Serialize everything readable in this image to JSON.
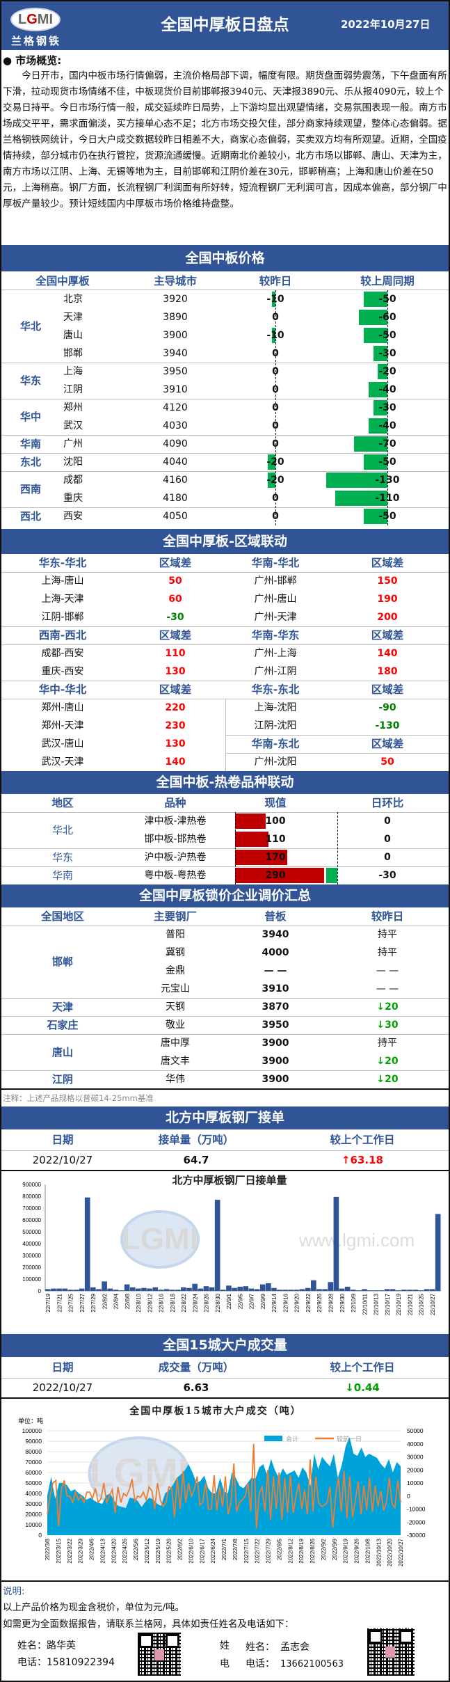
{
  "header": {
    "title": "全国中厚板日盘点",
    "date": "2022年10月27日",
    "logo_text": "LGMI",
    "logo_cn": "兰格钢铁"
  },
  "overview": {
    "label": "● 市场概览:",
    "text": "今日开市，国内中板市场行情偏弱，主流价格局部下调，幅度有限。期货盘面弱势震荡，下午盘面有所下滑，拉动现货市场情绪不佳，中板现货价目前邯郸报3940元、天津报3890元、乐从报4090元，较上个交易日持平。今日市场行情一般，成交延续昨日局势，上下游均显出观望情绪，交易氛围表现一般。南方市场成交平平，需求面偏淡，买方接单心态不足；北方市场交投欠佳，部分商家持续观望，整体心态偏弱。据兰格钢铁网统计，今日大户成交数据较昨日相差不大，商家心态偏弱，买卖双方均有所观望。近期，全国疫情持续，部分城市仍在执行管控，货源流通缓慢。近期南北价差较小，北方市场以邯郸、唐山、天津为主，南方市场以江阴、上海、无锡等地为主，目前邯郸和江阴价差在30元，邯郸稍高；上海和唐山价差在50元，上海稍高。钢厂方面，长流程钢厂利润面有所好转，短流程钢厂无利润可言，因成本偏高，部分钢厂中厚板产量较少。预计短线国内中厚板市场价格维持盘整。"
  },
  "price": {
    "title": "全国中板价格",
    "columns": [
      "全国中厚板",
      "主导城市",
      "较昨日",
      "较上周同期"
    ],
    "groups": [
      {
        "region": "华北",
        "rows": [
          {
            "city": "北京",
            "price": "3920",
            "dod": -10,
            "wow": -50
          },
          {
            "city": "天津",
            "price": "3890",
            "dod": 0,
            "wow": -60
          },
          {
            "city": "唐山",
            "price": "3900",
            "dod": -10,
            "wow": -50
          },
          {
            "city": "邯郸",
            "price": "3940",
            "dod": 0,
            "wow": -30
          }
        ]
      },
      {
        "region": "华东",
        "rows": [
          {
            "city": "上海",
            "price": "3950",
            "dod": 0,
            "wow": -20
          },
          {
            "city": "江阴",
            "price": "3910",
            "dod": 0,
            "wow": -40
          }
        ]
      },
      {
        "region": "华中",
        "rows": [
          {
            "city": "郑州",
            "price": "4120",
            "dod": 0,
            "wow": -30
          },
          {
            "city": "武汉",
            "price": "4030",
            "dod": 0,
            "wow": -40
          }
        ]
      },
      {
        "region": "华南",
        "rows": [
          {
            "city": "广州",
            "price": "4090",
            "dod": 0,
            "wow": -70
          }
        ]
      },
      {
        "region": "东北",
        "rows": [
          {
            "city": "沈阳",
            "price": "4040",
            "dod": -20,
            "wow": -50
          }
        ]
      },
      {
        "region": "西南",
        "rows": [
          {
            "city": "成都",
            "price": "4160",
            "dod": -20,
            "wow": -130
          },
          {
            "city": "重庆",
            "price": "4180",
            "dod": 0,
            "wow": -110
          }
        ]
      },
      {
        "region": "西北",
        "rows": [
          {
            "city": "西安",
            "price": "4050",
            "dod": 0,
            "wow": -50
          }
        ]
      }
    ],
    "bar_color": "#00b050"
  },
  "regional": {
    "title": "全国中厚板-区域联动",
    "left": [
      {
        "pair": "华东-华北",
        "diff_label": "区域差",
        "rows": [
          [
            "上海-唐山",
            50
          ],
          [
            "上海-天津",
            60
          ],
          [
            "江阴-邯郸",
            -30
          ]
        ]
      },
      {
        "pair": "西南-西北",
        "diff_label": "区域差",
        "rows": [
          [
            "成都-西安",
            110
          ],
          [
            "重庆-西安",
            130
          ]
        ]
      },
      {
        "pair": "华中-华北",
        "diff_label": "区域差",
        "rows": [
          [
            "郑州-唐山",
            220
          ],
          [
            "郑州-天津",
            230
          ],
          [
            "武汉-唐山",
            130
          ],
          [
            "武汉-天津",
            140
          ]
        ]
      }
    ],
    "right": [
      {
        "pair": "华南-华北",
        "diff_label": "区域差",
        "rows": [
          [
            "广州-邯郸",
            150
          ],
          [
            "广州-唐山",
            190
          ],
          [
            "广州-天津",
            200
          ]
        ]
      },
      {
        "pair": "华南-华东",
        "diff_label": "区域差",
        "rows": [
          [
            "广州-上海",
            140
          ],
          [
            "广州-江阴",
            180
          ]
        ]
      },
      {
        "pair": "华东-东北",
        "diff_label": "区域差",
        "rows": [
          [
            "上海-沈阳",
            -90
          ],
          [
            "江阴-沈阳",
            -130
          ]
        ]
      },
      {
        "pair": "华南-东北",
        "diff_label": "区域差",
        "rows": [
          [
            "广州-沈阳",
            50
          ]
        ]
      }
    ],
    "positive_color": "#ff0000",
    "negative_color": "#008000"
  },
  "hotroll": {
    "title": "全国中板-热卷品种联动",
    "columns": [
      "地区",
      "品种",
      "现值",
      "日环比"
    ],
    "groups": [
      {
        "region": "华北",
        "rows": [
          {
            "variety": "津中板-津热卷",
            "value": 100,
            "dod": 0
          },
          {
            "variety": "邯中板-邯热卷",
            "value": 110,
            "dod": 0
          }
        ]
      },
      {
        "region": "华东",
        "rows": [
          {
            "variety": "沪中板-沪热卷",
            "value": 170,
            "dod": 0
          }
        ]
      },
      {
        "region": "华南",
        "rows": [
          {
            "variety": "粤中板-粤热卷",
            "value": 290,
            "dod": -30
          }
        ]
      }
    ],
    "bar_color": "#c00000",
    "neg_color": "#00b050"
  },
  "lock": {
    "title": "全国中厚板锁价企业调价汇总",
    "columns": [
      "全国地区",
      "主要钢厂",
      "普板",
      "较昨日"
    ],
    "groups": [
      {
        "region": "邯郸",
        "rows": [
          {
            "mill": "普阳",
            "price": "3940",
            "change": "持平"
          },
          {
            "mill": "冀钢",
            "price": "4000",
            "change": "持平"
          },
          {
            "mill": "金鼎",
            "price": "— —",
            "change": "— —"
          },
          {
            "mill": "元宝山",
            "price": "3910",
            "change": "— —"
          }
        ]
      },
      {
        "region": "天津",
        "rows": [
          {
            "mill": "天钢",
            "price": "3870",
            "change": "↓20"
          }
        ]
      },
      {
        "region": "石家庄",
        "rows": [
          {
            "mill": "敬业",
            "price": "3950",
            "change": "↓30"
          }
        ]
      },
      {
        "region": "唐山",
        "rows": [
          {
            "mill": "唐中厚",
            "price": "3900",
            "change": "持平"
          },
          {
            "mill": "唐文丰",
            "price": "3900",
            "change": "↓20"
          }
        ]
      },
      {
        "region": "江阴",
        "rows": [
          {
            "mill": "华伟",
            "price": "3900",
            "change": "↓20"
          }
        ]
      }
    ],
    "note": "注释：上述产品规格以普碳14-25mm基准"
  },
  "north": {
    "title": "北方中厚板钢厂接单",
    "columns": [
      "日期",
      "接单量（万吨）",
      "较上个工作日"
    ],
    "date": "2022/10/27",
    "value": "64.7",
    "change": "↑63.18"
  },
  "city15": {
    "title": "全国15城大户成交量",
    "columns": [
      "日期",
      "成交量（万吨）",
      "较上个工作日"
    ],
    "date": "2022/10/27",
    "value": "6.63",
    "change": "↓0.44"
  },
  "chart_data": [
    {
      "type": "bar",
      "title": "北方中厚板钢厂日接单量",
      "watermark": "www.lgmi.com",
      "ylim": [
        0,
        900000
      ],
      "yticks": [
        0,
        100000,
        200000,
        300000,
        400000,
        500000,
        600000,
        700000,
        800000,
        900000
      ],
      "xtick_labels": [
        "22/7/19",
        "22/7/21",
        "22/7/25",
        "22/7/27",
        "22/7/29",
        "22/8/2",
        "22/8/4",
        "22/8/8",
        "22/8/10",
        "22/8/12",
        "22/8/16",
        "22/8/18",
        "22/8/22",
        "22/8/24",
        "22/8/26",
        "22/8/30",
        "22/9/1",
        "22/9/5",
        "22/9/7",
        "22/9/9",
        "22/9/14",
        "22/9/16",
        "22/9/20",
        "22/9/22",
        "22/9/26",
        "22/9/28",
        "22/9/30",
        "22/10/9",
        "22/10/11",
        "22/10/13",
        "22/10/17",
        "22/10/19",
        "22/10/21",
        "22/10/25",
        "22/10/27"
      ],
      "values": [
        15000,
        20000,
        20000,
        20000,
        10000,
        10000,
        20000,
        790000,
        30000,
        15000,
        80000,
        20000,
        10000,
        5000,
        55000,
        30000,
        20000,
        25000,
        20000,
        30000,
        10000,
        15000,
        10000,
        10000,
        30000,
        25000,
        60000,
        20000,
        40000,
        30000,
        770000,
        10000,
        45000,
        25000,
        35000,
        40000,
        20000,
        15000,
        55000,
        65000,
        25000,
        10000,
        10000,
        10000,
        10000,
        15000,
        25000,
        90000,
        15000,
        15000,
        75000,
        795000,
        20000,
        35000,
        10000,
        5000,
        15000,
        5000,
        5000,
        5000,
        15000,
        15000,
        5000,
        10000,
        10000,
        10000,
        5000,
        15000,
        15000,
        650000
      ],
      "color": "#2f5597"
    },
    {
      "type": "area+line",
      "title": "全国中厚板15城市大户成交（吨）",
      "unit_label": "单位：吨",
      "ylim": [
        0,
        100000
      ],
      "y2lim": [
        -30000,
        50000
      ],
      "yticks": [
        0,
        10000,
        20000,
        30000,
        40000,
        50000,
        60000,
        70000,
        80000,
        90000,
        100000
      ],
      "y2ticks": [
        -30000,
        -20000,
        -10000,
        0,
        10000,
        20000,
        30000,
        40000,
        50000
      ],
      "xtick_labels": [
        "2022/3/8",
        "2022/3/15",
        "2022/3/22",
        "2022/3/29",
        "2022/4/6",
        "2022/4/13",
        "2022/4/20",
        "2022/4/26",
        "2022/5/6",
        "2022/5/12",
        "2022/5/19",
        "2022/5/26",
        "2022/6/2",
        "2022/6/10",
        "2022/6/17",
        "2022/6/24",
        "2022/7/1",
        "2022/7/8",
        "2022/7/15",
        "2022/7/22",
        "2022/7/29",
        "2022/8/5",
        "2022/8/12",
        "2022/8/19",
        "2022/8/26",
        "2022/9/2",
        "2022/9/9",
        "2022/9/19",
        "2022/9/26",
        "2022/10/8",
        "2022/10/13",
        "2022/10/20",
        "2022/10/27"
      ],
      "legend_position": "top-right",
      "series": [
        {
          "name": "合计",
          "axis": "left",
          "color": "#00a3d9",
          "values": [
            38000,
            56000,
            35000,
            50000,
            50000,
            48000,
            42000,
            44000,
            40000,
            38000,
            34000,
            36000,
            33000,
            31000,
            30000,
            38000,
            40000,
            33000,
            28000,
            27000,
            26000,
            36000,
            35000,
            33000,
            27000,
            32000,
            36000,
            34000,
            30000,
            28000,
            40000,
            43000,
            48000,
            55000,
            58000,
            62000,
            68000,
            60000,
            50000,
            52000,
            57000,
            45000,
            40000,
            40000,
            55000,
            42000,
            40000,
            60000,
            55000,
            47000,
            45000,
            50000,
            55000,
            54000,
            65000,
            68000,
            58000,
            73000,
            62000,
            55000,
            64000,
            58000,
            60000,
            62000,
            55000,
            65000,
            60000,
            47000,
            78000,
            63000,
            75000,
            70000,
            66000,
            78000,
            55000,
            67000,
            85000,
            94000,
            78000,
            76000,
            84000,
            75000,
            78000,
            76000,
            74000,
            68000,
            64000,
            73000,
            60000,
            70000,
            66000
          ]
        },
        {
          "name": "较前一日",
          "axis": "right",
          "color": "#ed7d31",
          "values": [
            -14000,
            0,
            10000,
            12000,
            -23000,
            5000,
            12000,
            0,
            0,
            -5000,
            3000,
            -3000,
            0,
            -5000,
            3000,
            3000,
            -2000,
            6000,
            -5000,
            -2000,
            10000,
            -5000,
            0,
            5000,
            -13000,
            7000,
            -5000,
            2000,
            0,
            5000,
            13000,
            -4000,
            0,
            -1000,
            3000,
            -3000,
            7000,
            4000,
            -10000,
            10000,
            -3000,
            -8000,
            -5000,
            7000,
            6000,
            -16000,
            14000,
            -10000,
            19000,
            -5000,
            10000,
            0,
            5000,
            15000,
            -7000,
            -5000,
            10000,
            -10000,
            -10000,
            16000,
            -11000,
            7000,
            -8000,
            15000,
            -14000,
            -5000,
            25000,
            -12000,
            -5000,
            -3000,
            0,
            10000,
            -12000,
            40000,
            -25000,
            2000,
            7000,
            -12000,
            20000,
            -18000,
            15000,
            -10000,
            18000,
            -18000,
            14000,
            -13000,
            16000,
            -13000,
            0,
            10000,
            -10000,
            5000,
            -14000,
            28000,
            -12000,
            15000,
            -5000,
            -8000,
            -7000,
            -5000,
            7000,
            -24000,
            0,
            14000,
            -12000,
            19000,
            -17000,
            15000,
            -16000,
            -3000,
            11000,
            -14000,
            8000,
            -11000,
            14000,
            -12000,
            8000,
            -8000,
            4000,
            -11000,
            -5000,
            14000,
            -6000,
            -9000,
            12000,
            -5000
          ]
        }
      ]
    }
  ],
  "footer": {
    "label": "说明:",
    "lines": [
      "以上产品价格为现金含税价，单位为元/吨。",
      "如需更为全面数据报告，请联系兰格网，具体如责任姓名及电话如下："
    ],
    "contacts": [
      {
        "name_label": "姓名：",
        "name": "路华英",
        "phone_label": "电话：",
        "phone": "15810922394"
      },
      {
        "name_label": "姓名：",
        "name": "孟志会",
        "phone_label": "电话：",
        "phone": "13662100563"
      }
    ],
    "ghost": {
      "name": "姓",
      "phone": "电"
    }
  }
}
